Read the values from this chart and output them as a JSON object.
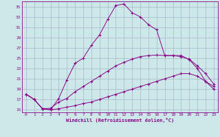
{
  "xlabel": "Windchill (Refroidissement éolien,°C)",
  "bg_color": "#cde8e8",
  "grid_color": "#aab4cc",
  "line_color": "#880088",
  "xlim": [
    -0.5,
    23.5
  ],
  "ylim": [
    14.5,
    36.0
  ],
  "yticks": [
    15,
    17,
    19,
    21,
    23,
    25,
    27,
    29,
    31,
    33,
    35
  ],
  "xticks": [
    0,
    1,
    2,
    3,
    4,
    5,
    6,
    7,
    8,
    9,
    10,
    11,
    12,
    13,
    14,
    15,
    16,
    17,
    18,
    19,
    20,
    21,
    22,
    23
  ],
  "curve1_x": [
    0,
    1,
    2,
    3,
    4,
    5,
    6,
    7,
    8,
    9,
    10,
    11,
    12,
    13,
    14,
    15,
    16,
    17,
    18,
    19,
    20,
    21,
    22,
    23
  ],
  "curve1_y": [
    18.0,
    17.0,
    15.2,
    15.0,
    15.2,
    15.5,
    15.8,
    16.2,
    16.5,
    17.0,
    17.5,
    18.0,
    18.5,
    19.0,
    19.5,
    20.0,
    20.5,
    21.0,
    21.5,
    22.0,
    22.0,
    21.5,
    20.5,
    19.5
  ],
  "curve2_x": [
    0,
    1,
    2,
    3,
    4,
    5,
    6,
    7,
    8,
    9,
    10,
    11,
    12,
    13,
    14,
    15,
    16,
    17,
    18,
    19,
    20,
    21,
    22,
    23
  ],
  "curve2_y": [
    18.0,
    17.0,
    15.2,
    15.3,
    16.5,
    17.2,
    18.5,
    19.5,
    20.5,
    21.5,
    22.5,
    23.5,
    24.2,
    24.8,
    25.3,
    25.5,
    25.6,
    25.5,
    25.5,
    25.3,
    24.8,
    23.5,
    22.0,
    20.0
  ],
  "curve3_x": [
    0,
    1,
    2,
    3,
    4,
    5,
    6,
    7,
    8,
    9,
    10,
    11,
    12,
    13,
    14,
    15,
    16,
    17,
    18,
    19,
    20,
    21,
    22,
    23
  ],
  "curve3_y": [
    18.0,
    17.0,
    15.2,
    15.0,
    17.2,
    20.8,
    24.0,
    25.0,
    27.5,
    29.5,
    32.5,
    35.2,
    35.5,
    33.8,
    33.0,
    31.5,
    30.5,
    25.5,
    25.5,
    25.5,
    24.7,
    23.0,
    20.5,
    19.0
  ]
}
